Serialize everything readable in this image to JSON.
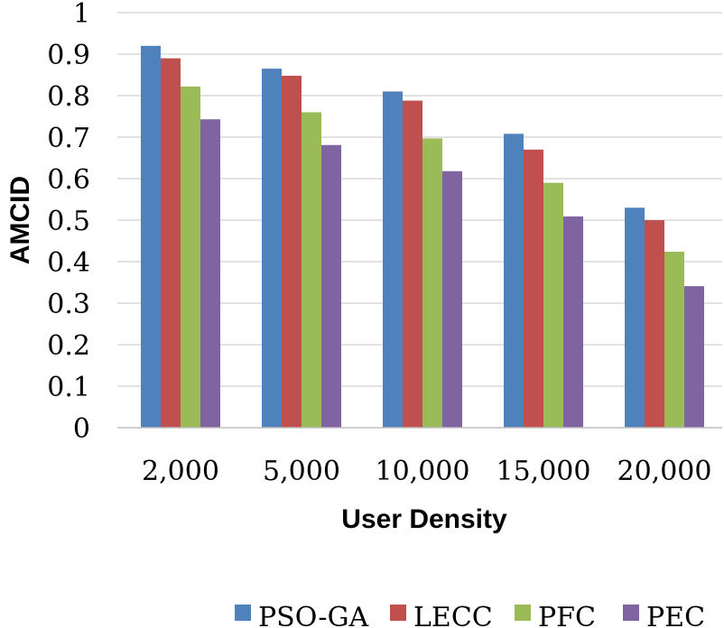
{
  "chart_data": {
    "type": "bar",
    "title": "",
    "xlabel": "User Density",
    "ylabel": "AMCID",
    "categories": [
      "2,000",
      "5,000",
      "10,000",
      "15,000",
      "20,000"
    ],
    "ylim": [
      0,
      1
    ],
    "yticks": [
      "0",
      "0.1",
      "0.2",
      "0.3",
      "0.4",
      "0.5",
      "0.6",
      "0.7",
      "0.8",
      "0.9",
      "1"
    ],
    "grid": true,
    "legend_position": "bottom",
    "series": [
      {
        "name": "PSO-GA",
        "color": "#4f81bd",
        "values": [
          0.92,
          0.865,
          0.81,
          0.708,
          0.53
        ]
      },
      {
        "name": "LECC",
        "color": "#c0504d",
        "values": [
          0.89,
          0.848,
          0.788,
          0.67,
          0.5
        ]
      },
      {
        "name": "PFC",
        "color": "#9bbb59",
        "values": [
          0.822,
          0.76,
          0.697,
          0.59,
          0.424
        ]
      },
      {
        "name": "PEC",
        "color": "#8064a2",
        "values": [
          0.743,
          0.681,
          0.618,
          0.509,
          0.341
        ]
      }
    ]
  }
}
